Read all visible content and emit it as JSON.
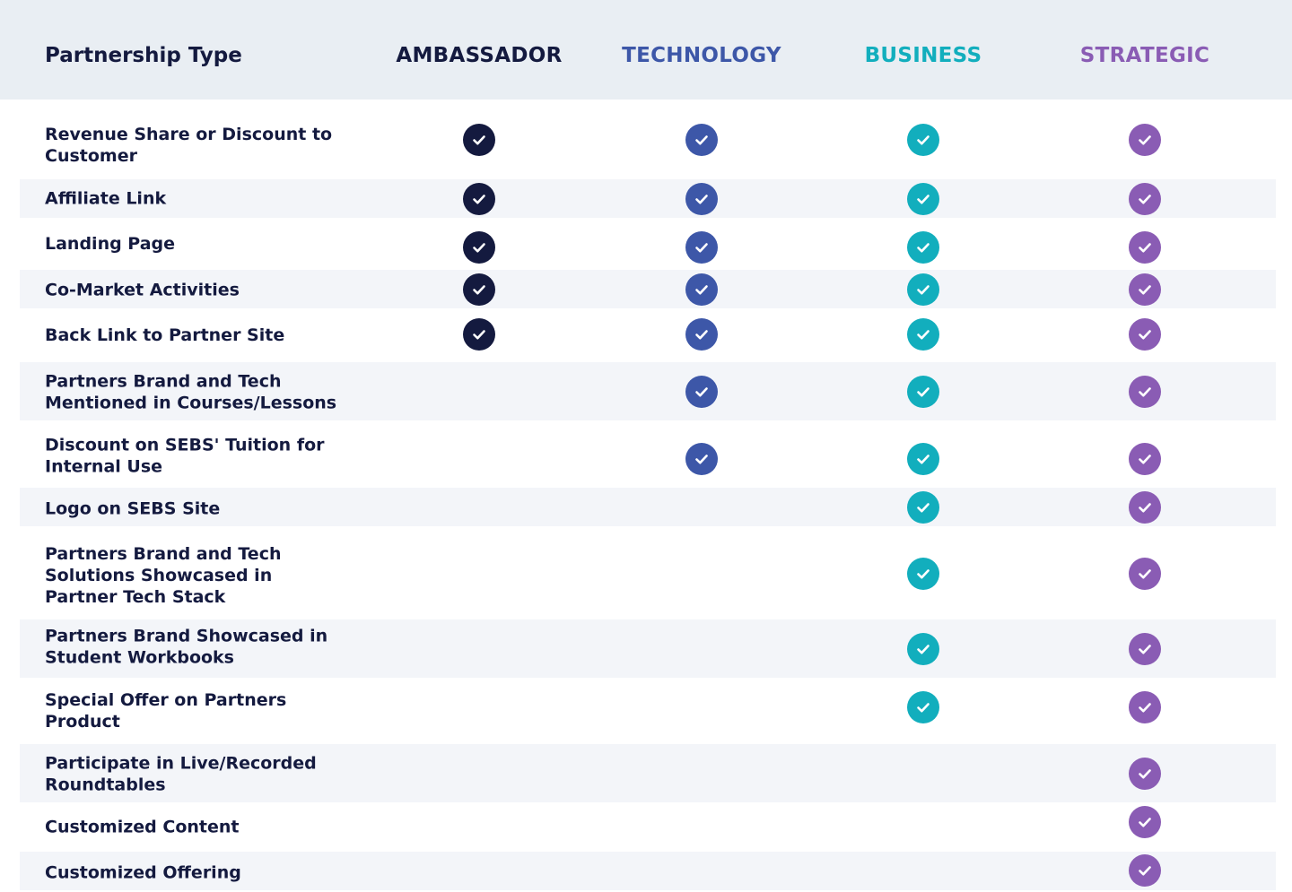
{
  "header": {
    "title": "Partnership Type",
    "columns": [
      {
        "id": "ambassador",
        "label": "AMBASSADOR",
        "color": "#141a3f"
      },
      {
        "id": "technology",
        "label": "TECHNOLOGY",
        "color": "#3d57a8"
      },
      {
        "id": "business",
        "label": "BUSINESS",
        "color": "#12aebd"
      },
      {
        "id": "strategic",
        "label": "STRATEGIC",
        "color": "#8a5cb4"
      }
    ]
  },
  "icons": {
    "check": "check-circle-icon"
  },
  "rows": [
    {
      "label": "Revenue Share or Discount to Customer",
      "checks": [
        true,
        true,
        true,
        true
      ]
    },
    {
      "label": "Affiliate Link",
      "checks": [
        true,
        true,
        true,
        true
      ]
    },
    {
      "label": "Landing Page",
      "checks": [
        true,
        true,
        true,
        true
      ]
    },
    {
      "label": "Co-Market Activities",
      "checks": [
        true,
        true,
        true,
        true
      ]
    },
    {
      "label": "Back Link to Partner Site",
      "checks": [
        true,
        true,
        true,
        true
      ]
    },
    {
      "label": "Partners Brand and Tech Mentioned in Courses/Lessons",
      "checks": [
        false,
        true,
        true,
        true
      ]
    },
    {
      "label": "Discount on SEBS' Tuition for Internal Use",
      "checks": [
        false,
        true,
        true,
        true
      ]
    },
    {
      "label": "Logo on SEBS Site",
      "checks": [
        false,
        false,
        true,
        true
      ]
    },
    {
      "label": "Partners Brand and Tech Solutions Showcased in Partner Tech Stack",
      "checks": [
        false,
        false,
        true,
        true
      ]
    },
    {
      "label": "Partners Brand Showcased in Student Workbooks",
      "checks": [
        false,
        false,
        true,
        true
      ]
    },
    {
      "label": "Special Offer on Partners Product",
      "checks": [
        false,
        false,
        true,
        true
      ]
    },
    {
      "label": "Participate in Live/Recorded Roundtables",
      "checks": [
        false,
        false,
        false,
        true
      ]
    },
    {
      "label": "Customized Content",
      "checks": [
        false,
        false,
        false,
        true
      ]
    },
    {
      "label": "Customized Offering",
      "checks": [
        false,
        false,
        false,
        true
      ]
    }
  ]
}
